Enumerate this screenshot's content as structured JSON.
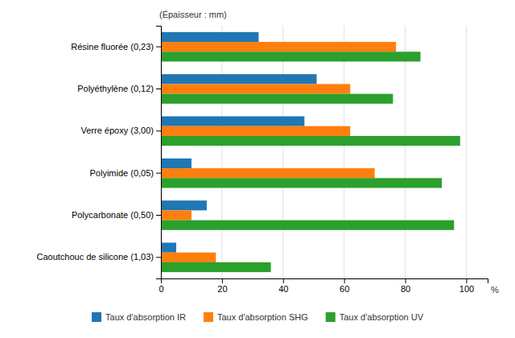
{
  "chart_data": {
    "type": "bar",
    "orientation": "horizontal",
    "categories": [
      "Résine fluorée (0,23)",
      "Polyéthylène (0,12)",
      "Verre époxy (3,00)",
      "Polyimide (0,05)",
      "Polycarbonate (0,50)",
      "Caoutchouc de silicone (1,03)"
    ],
    "series": [
      {
        "name": "Taux d'absorption IR",
        "values": [
          32,
          51,
          47,
          10,
          15,
          5
        ]
      },
      {
        "name": "Taux d'absorption SHG",
        "values": [
          77,
          62,
          62,
          70,
          10,
          18
        ]
      },
      {
        "name": "Taux d'absorption UV",
        "values": [
          85,
          76,
          98,
          92,
          96,
          36
        ]
      }
    ],
    "xlabel": "%",
    "annotations": [
      "(Épaisseur : mm)"
    ],
    "xlim": [
      0,
      107
    ],
    "xticks": [
      0,
      20,
      40,
      60,
      80,
      100
    ],
    "grid": true,
    "legend": "bottom"
  }
}
